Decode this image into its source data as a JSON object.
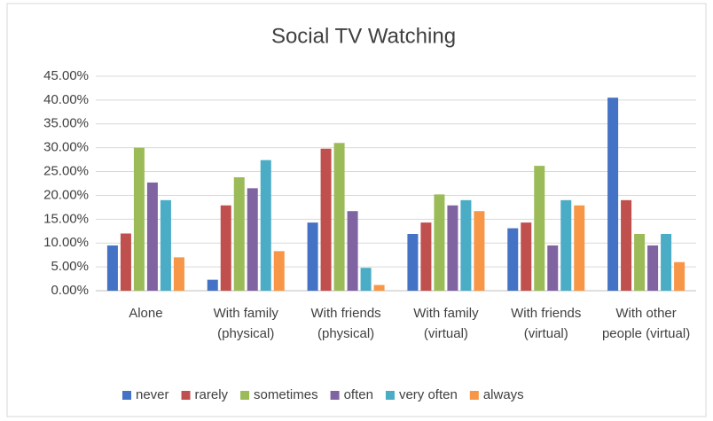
{
  "chart_data": {
    "type": "bar",
    "title": "Social TV Watching",
    "categories": [
      "Alone",
      "With family (physical)",
      "With friends (physical)",
      "With family (virtual)",
      "With friends (virtual)",
      "With other people (virtual)"
    ],
    "series": [
      {
        "name": "never",
        "color": "#4472c4",
        "values": [
          9.5,
          2.3,
          14.3,
          11.9,
          13.1,
          40.5
        ]
      },
      {
        "name": "rarely",
        "color": "#c0504d",
        "values": [
          12,
          17.9,
          29.8,
          14.3,
          14.3,
          19
        ]
      },
      {
        "name": "sometimes",
        "color": "#9bbb59",
        "values": [
          30,
          23.8,
          31,
          20.2,
          26.2,
          11.9
        ]
      },
      {
        "name": "often",
        "color": "#8064a2",
        "values": [
          22.7,
          21.5,
          16.7,
          17.9,
          9.5,
          9.5
        ]
      },
      {
        "name": "very often",
        "color": "#4bacc6",
        "values": [
          19,
          27.4,
          4.8,
          19,
          19,
          11.9
        ]
      },
      {
        "name": "always",
        "color": "#f79646",
        "values": [
          7,
          8.3,
          1.2,
          16.7,
          17.9,
          6
        ]
      }
    ],
    "ylim": [
      0,
      45
    ],
    "yticks": [
      {
        "value": 0,
        "label": "0.00%"
      },
      {
        "value": 5,
        "label": "5.00%"
      },
      {
        "value": 10,
        "label": "10.00%"
      },
      {
        "value": 15,
        "label": "15.00%"
      },
      {
        "value": 20,
        "label": "20.00%"
      },
      {
        "value": 25,
        "label": "25.00%"
      },
      {
        "value": 30,
        "label": "30.00%"
      },
      {
        "value": 35,
        "label": "35.00%"
      },
      {
        "value": 40,
        "label": "40.00%"
      },
      {
        "value": 45,
        "label": "45.00%"
      }
    ],
    "grid": true,
    "legend": "bottom"
  }
}
